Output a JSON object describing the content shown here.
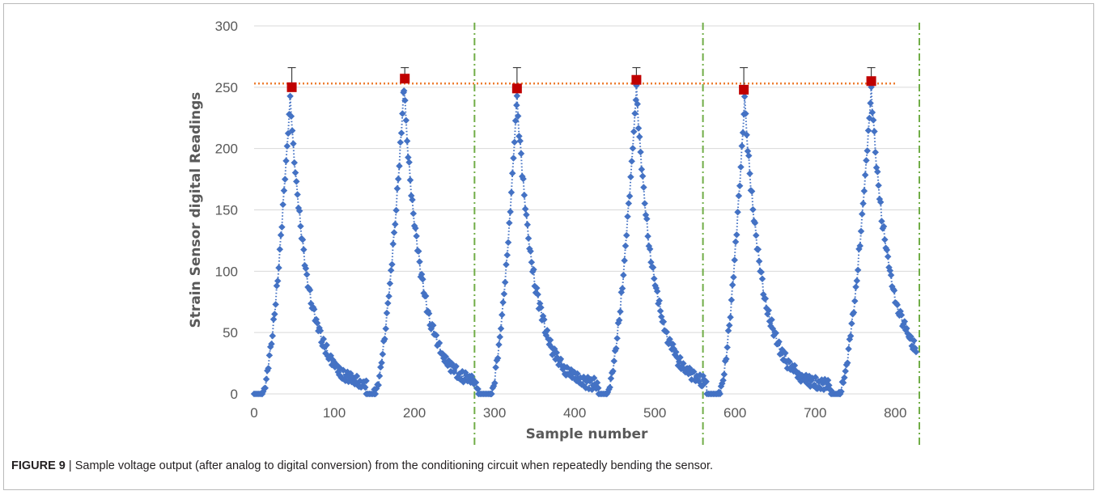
{
  "caption": {
    "label": "FIGURE 9",
    "separator": " | ",
    "text": "Sample voltage output (after analog to digital conversion) from the conditioning circuit when repeatedly bending the sensor."
  },
  "chart_data": {
    "type": "scatter",
    "title": "",
    "xlabel": "Sample number",
    "ylabel": "Strain Sensor digital Readings",
    "xlim": [
      0,
      830
    ],
    "ylim": [
      0,
      300
    ],
    "xticks": [
      0,
      100,
      200,
      300,
      400,
      500,
      600,
      700,
      800
    ],
    "yticks": [
      0,
      50,
      100,
      150,
      200,
      250,
      300
    ],
    "grid": "horizontal",
    "colors": {
      "readings": "#4472c4",
      "peaks": "#c00000",
      "reference": "#ed7d31",
      "cycle_boundaries": "#70ad47",
      "gridline": "#d9d9d9",
      "text": "#595959"
    },
    "peaks": {
      "x": [
        47,
        188,
        328,
        477,
        611,
        770
      ],
      "y": [
        250,
        257,
        249,
        256,
        248,
        255
      ],
      "error_upper": [
        266,
        266,
        266,
        266,
        266,
        266
      ]
    },
    "reference_line_y": 253,
    "cycle_boundaries_x": [
      275,
      560,
      830
    ],
    "readings_series": {
      "cycle_peaks_x": [
        45,
        187,
        328,
        477,
        612,
        770
      ],
      "baseline_x": [
        [
          0,
          10
        ],
        [
          140,
          150
        ],
        [
          280,
          295
        ],
        [
          430,
          440
        ],
        [
          565,
          580
        ],
        [
          720,
          730
        ]
      ],
      "end_value": 20
    }
  }
}
